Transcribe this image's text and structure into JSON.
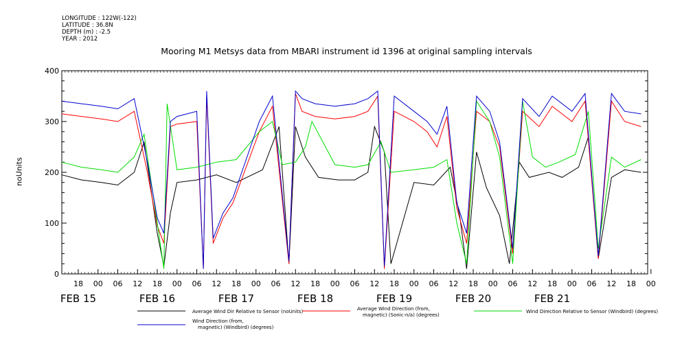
{
  "meta": {
    "longitude": "LONGITUDE : 122W(-122)",
    "latitude": "LATITUDE : 36.8N",
    "depth": "DEPTH (m) : -2.5",
    "year": "YEAR : 2012"
  },
  "chart_data": {
    "type": "line",
    "title": "Mooring M1 Metsys data from MBARI instrument id 1396 at original sampling intervals",
    "xlabel": "",
    "ylabel": "noUnits",
    "ylim": [
      0,
      400
    ],
    "xlim": [
      "2012-02-14T13:00",
      "2012-02-21T23:00"
    ],
    "y_ticks": [
      0,
      100,
      200,
      300,
      400
    ],
    "x_tick_labels": [
      {
        "t": "2012-02-14T18:00",
        "label": "18"
      },
      {
        "t": "2012-02-15T00:00",
        "label": "00"
      },
      {
        "t": "2012-02-15T06:00",
        "label": "06"
      },
      {
        "t": "2012-02-15T12:00",
        "label": "12"
      },
      {
        "t": "2012-02-15T18:00",
        "label": "18"
      },
      {
        "t": "2012-02-16T00:00",
        "label": "00"
      },
      {
        "t": "2012-02-16T06:00",
        "label": "06"
      },
      {
        "t": "2012-02-16T12:00",
        "label": "12"
      },
      {
        "t": "2012-02-16T18:00",
        "label": "18"
      },
      {
        "t": "2012-02-17T00:00",
        "label": "00"
      },
      {
        "t": "2012-02-17T06:00",
        "label": "06"
      },
      {
        "t": "2012-02-17T12:00",
        "label": "12"
      },
      {
        "t": "2012-02-17T18:00",
        "label": "18"
      },
      {
        "t": "2012-02-18T00:00",
        "label": "00"
      },
      {
        "t": "2012-02-18T06:00",
        "label": "06"
      },
      {
        "t": "2012-02-18T12:00",
        "label": "12"
      },
      {
        "t": "2012-02-18T18:00",
        "label": "18"
      },
      {
        "t": "2012-02-19T00:00",
        "label": "00"
      },
      {
        "t": "2012-02-19T06:00",
        "label": "06"
      },
      {
        "t": "2012-02-19T12:00",
        "label": "12"
      },
      {
        "t": "2012-02-19T18:00",
        "label": "18"
      },
      {
        "t": "2012-02-20T00:00",
        "label": "00"
      },
      {
        "t": "2012-02-20T06:00",
        "label": "06"
      },
      {
        "t": "2012-02-20T12:00",
        "label": "12"
      },
      {
        "t": "2012-02-20T18:00",
        "label": "18"
      },
      {
        "t": "2012-02-21T00:00",
        "label": "00"
      },
      {
        "t": "2012-02-21T06:00",
        "label": "06"
      },
      {
        "t": "2012-02-21T12:00",
        "label": "12"
      },
      {
        "t": "2012-02-21T18:00",
        "label": "18"
      },
      {
        "t": "2012-02-22T00:00",
        "label": "00"
      }
    ],
    "date_labels": [
      {
        "t": "2012-02-14T18:00",
        "label": "FEB 15"
      },
      {
        "t": "2012-02-15T18:00",
        "label": "FEB 16"
      },
      {
        "t": "2012-02-16T18:00",
        "label": "FEB 17"
      },
      {
        "t": "2012-02-17T18:00",
        "label": "FEB 18"
      },
      {
        "t": "2012-02-18T18:00",
        "label": "FEB 19"
      },
      {
        "t": "2012-02-19T18:00",
        "label": "FEB 20"
      },
      {
        "t": "2012-02-20T18:00",
        "label": "FEB 21"
      }
    ],
    "legend_placement": "bottom",
    "series": [
      {
        "name": "Average Wind Dir Relative to Sensor (noUnits)",
        "color": "#000000",
        "values": [
          [
            "2012-02-14T13:00",
            195
          ],
          [
            "2012-02-14T19:00",
            185
          ],
          [
            "2012-02-15T01:00",
            180
          ],
          [
            "2012-02-15T06:00",
            175
          ],
          [
            "2012-02-15T11:00",
            200
          ],
          [
            "2012-02-15T14:00",
            260
          ],
          [
            "2012-02-15T18:00",
            80
          ],
          [
            "2012-02-15T20:00",
            15
          ],
          [
            "2012-02-15T22:00",
            120
          ],
          [
            "2012-02-16T00:00",
            180
          ],
          [
            "2012-02-16T06:00",
            185
          ],
          [
            "2012-02-16T09:00",
            190
          ],
          [
            "2012-02-16T12:00",
            195
          ],
          [
            "2012-02-16T18:00",
            180
          ],
          [
            "2012-02-17T02:00",
            205
          ],
          [
            "2012-02-17T07:00",
            290
          ],
          [
            "2012-02-17T10:00",
            20
          ],
          [
            "2012-02-17T12:00",
            290
          ],
          [
            "2012-02-17T15:00",
            230
          ],
          [
            "2012-02-17T19:00",
            190
          ],
          [
            "2012-02-18T01:00",
            185
          ],
          [
            "2012-02-18T06:00",
            185
          ],
          [
            "2012-02-18T10:00",
            200
          ],
          [
            "2012-02-18T12:00",
            290
          ],
          [
            "2012-02-18T15:00",
            240
          ],
          [
            "2012-02-18T17:00",
            20
          ],
          [
            "2012-02-19T00:00",
            180
          ],
          [
            "2012-02-19T06:00",
            175
          ],
          [
            "2012-02-19T11:00",
            210
          ],
          [
            "2012-02-19T14:00",
            110
          ],
          [
            "2012-02-19T16:00",
            10
          ],
          [
            "2012-02-19T19:00",
            240
          ],
          [
            "2012-02-19T22:00",
            170
          ],
          [
            "2012-02-20T02:00",
            115
          ],
          [
            "2012-02-20T05:00",
            20
          ],
          [
            "2012-02-20T08:00",
            220
          ],
          [
            "2012-02-20T11:00",
            190
          ],
          [
            "2012-02-20T17:00",
            200
          ],
          [
            "2012-02-20T21:00",
            190
          ],
          [
            "2012-02-21T02:00",
            210
          ],
          [
            "2012-02-21T05:00",
            270
          ],
          [
            "2012-02-21T08:00",
            30
          ],
          [
            "2012-02-21T12:00",
            190
          ],
          [
            "2012-02-21T16:00",
            205
          ],
          [
            "2012-02-21T21:00",
            200
          ]
        ]
      },
      {
        "name": "Average Wind Direction (from, magnetic) (Sonic-n/a) (degrees)",
        "color": "#ff0000",
        "values": [
          [
            "2012-02-14T13:00",
            315
          ],
          [
            "2012-02-14T19:00",
            310
          ],
          [
            "2012-02-15T01:00",
            305
          ],
          [
            "2012-02-15T06:00",
            300
          ],
          [
            "2012-02-15T11:00",
            320
          ],
          [
            "2012-02-15T15:00",
            200
          ],
          [
            "2012-02-15T18:00",
            95
          ],
          [
            "2012-02-15T20:00",
            60
          ],
          [
            "2012-02-15T22:00",
            290
          ],
          [
            "2012-02-16T00:00",
            295
          ],
          [
            "2012-02-16T06:00",
            300
          ],
          [
            "2012-02-16T08:00",
            10
          ],
          [
            "2012-02-16T09:00",
            350
          ],
          [
            "2012-02-16T11:00",
            60
          ],
          [
            "2012-02-16T14:00",
            110
          ],
          [
            "2012-02-16T17:00",
            140
          ],
          [
            "2012-02-17T01:00",
            280
          ],
          [
            "2012-02-17T05:00",
            330
          ],
          [
            "2012-02-17T10:00",
            20
          ],
          [
            "2012-02-17T12:00",
            355
          ],
          [
            "2012-02-17T14:00",
            320
          ],
          [
            "2012-02-17T18:00",
            310
          ],
          [
            "2012-02-18T00:00",
            305
          ],
          [
            "2012-02-18T06:00",
            310
          ],
          [
            "2012-02-18T10:00",
            320
          ],
          [
            "2012-02-18T13:00",
            350
          ],
          [
            "2012-02-18T15:00",
            10
          ],
          [
            "2012-02-18T18:00",
            320
          ],
          [
            "2012-02-19T00:00",
            300
          ],
          [
            "2012-02-19T04:00",
            280
          ],
          [
            "2012-02-19T07:00",
            250
          ],
          [
            "2012-02-19T10:00",
            310
          ],
          [
            "2012-02-19T13:00",
            130
          ],
          [
            "2012-02-19T16:00",
            60
          ],
          [
            "2012-02-19T19:00",
            320
          ],
          [
            "2012-02-19T23:00",
            300
          ],
          [
            "2012-02-20T02:00",
            250
          ],
          [
            "2012-02-20T06:00",
            40
          ],
          [
            "2012-02-20T09:00",
            320
          ],
          [
            "2012-02-20T14:00",
            290
          ],
          [
            "2012-02-20T18:00",
            330
          ],
          [
            "2012-02-21T00:00",
            300
          ],
          [
            "2012-02-21T04:00",
            340
          ],
          [
            "2012-02-21T08:00",
            30
          ],
          [
            "2012-02-21T12:00",
            340
          ],
          [
            "2012-02-21T16:00",
            300
          ],
          [
            "2012-02-21T21:00",
            290
          ]
        ]
      },
      {
        "name": "Wind Direction Relative to Sensor (Windbird) (degrees)",
        "color": "#00dd00",
        "values": [
          [
            "2012-02-14T13:00",
            220
          ],
          [
            "2012-02-14T19:00",
            210
          ],
          [
            "2012-02-15T01:00",
            205
          ],
          [
            "2012-02-15T06:00",
            200
          ],
          [
            "2012-02-15T11:00",
            230
          ],
          [
            "2012-02-15T14:00",
            275
          ],
          [
            "2012-02-15T18:00",
            100
          ],
          [
            "2012-02-15T20:00",
            10
          ],
          [
            "2012-02-15T21:00",
            335
          ],
          [
            "2012-02-16T00:00",
            205
          ],
          [
            "2012-02-16T06:00",
            210
          ],
          [
            "2012-02-16T09:00",
            215
          ],
          [
            "2012-02-16T12:00",
            220
          ],
          [
            "2012-02-16T18:00",
            225
          ],
          [
            "2012-02-17T01:00",
            280
          ],
          [
            "2012-02-17T05:00",
            300
          ],
          [
            "2012-02-17T08:00",
            215
          ],
          [
            "2012-02-17T12:00",
            220
          ],
          [
            "2012-02-17T15:00",
            250
          ],
          [
            "2012-02-17T17:00",
            300
          ],
          [
            "2012-02-18T00:00",
            215
          ],
          [
            "2012-02-18T06:00",
            210
          ],
          [
            "2012-02-18T10:00",
            215
          ],
          [
            "2012-02-18T14:00",
            260
          ],
          [
            "2012-02-18T17:00",
            200
          ],
          [
            "2012-02-19T00:00",
            205
          ],
          [
            "2012-02-19T06:00",
            210
          ],
          [
            "2012-02-19T10:00",
            225
          ],
          [
            "2012-02-19T13:00",
            100
          ],
          [
            "2012-02-19T16:00",
            20
          ],
          [
            "2012-02-19T19:00",
            340
          ],
          [
            "2012-02-19T23:00",
            300
          ],
          [
            "2012-02-20T02:00",
            230
          ],
          [
            "2012-02-20T06:00",
            20
          ],
          [
            "2012-02-20T09:00",
            340
          ],
          [
            "2012-02-20T12:00",
            230
          ],
          [
            "2012-02-20T16:00",
            210
          ],
          [
            "2012-02-20T20:00",
            220
          ],
          [
            "2012-02-21T01:00",
            235
          ],
          [
            "2012-02-21T05:00",
            320
          ],
          [
            "2012-02-21T08:00",
            50
          ],
          [
            "2012-02-21T12:00",
            230
          ],
          [
            "2012-02-21T16:00",
            210
          ],
          [
            "2012-02-21T21:00",
            225
          ]
        ]
      },
      {
        "name": "Wind Direction (from, magnetic) (Windbird) (degrees)",
        "color": "#0000cc",
        "values": [
          [
            "2012-02-14T13:00",
            340
          ],
          [
            "2012-02-14T19:00",
            335
          ],
          [
            "2012-02-15T01:00",
            330
          ],
          [
            "2012-02-15T06:00",
            325
          ],
          [
            "2012-02-15T11:00",
            345
          ],
          [
            "2012-02-15T15:00",
            220
          ],
          [
            "2012-02-15T18:00",
            110
          ],
          [
            "2012-02-15T20:00",
            80
          ],
          [
            "2012-02-15T22:00",
            300
          ],
          [
            "2012-02-16T00:00",
            310
          ],
          [
            "2012-02-16T06:00",
            320
          ],
          [
            "2012-02-16T08:00",
            10
          ],
          [
            "2012-02-16T09:00",
            360
          ],
          [
            "2012-02-16T11:00",
            70
          ],
          [
            "2012-02-16T14:00",
            120
          ],
          [
            "2012-02-16T17:00",
            150
          ],
          [
            "2012-02-17T01:00",
            300
          ],
          [
            "2012-02-17T05:00",
            350
          ],
          [
            "2012-02-17T10:00",
            25
          ],
          [
            "2012-02-17T12:00",
            360
          ],
          [
            "2012-02-17T14:00",
            345
          ],
          [
            "2012-02-17T18:00",
            335
          ],
          [
            "2012-02-18T00:00",
            330
          ],
          [
            "2012-02-18T06:00",
            335
          ],
          [
            "2012-02-18T10:00",
            345
          ],
          [
            "2012-02-18T13:00",
            360
          ],
          [
            "2012-02-18T15:00",
            15
          ],
          [
            "2012-02-18T18:00",
            350
          ],
          [
            "2012-02-19T00:00",
            320
          ],
          [
            "2012-02-19T04:00",
            300
          ],
          [
            "2012-02-19T07:00",
            275
          ],
          [
            "2012-02-19T10:00",
            330
          ],
          [
            "2012-02-19T13:00",
            140
          ],
          [
            "2012-02-19T16:00",
            80
          ],
          [
            "2012-02-19T19:00",
            350
          ],
          [
            "2012-02-19T23:00",
            320
          ],
          [
            "2012-02-20T02:00",
            260
          ],
          [
            "2012-02-20T06:00",
            50
          ],
          [
            "2012-02-20T09:00",
            345
          ],
          [
            "2012-02-20T14:00",
            310
          ],
          [
            "2012-02-20T18:00",
            350
          ],
          [
            "2012-02-21T00:00",
            320
          ],
          [
            "2012-02-21T04:00",
            355
          ],
          [
            "2012-02-21T08:00",
            35
          ],
          [
            "2012-02-21T12:00",
            355
          ],
          [
            "2012-02-21T16:00",
            320
          ],
          [
            "2012-02-21T21:00",
            315
          ]
        ]
      }
    ]
  }
}
